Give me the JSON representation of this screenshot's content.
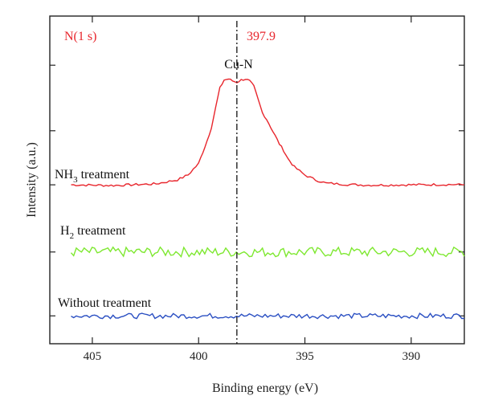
{
  "chart_data": {
    "type": "line",
    "title": "",
    "xlabel": "Binding energy (eV)",
    "ylabel": "Intensity (a.u.)",
    "xlim": [
      407.0,
      387.5
    ],
    "x_reversed": true,
    "x_ticks": [
      405,
      400,
      395,
      390
    ],
    "x_tick_labels": [
      "405",
      "400",
      "395",
      "390"
    ],
    "y_ticks_unlabeled": true,
    "ylim": [
      0,
      100
    ],
    "grid": false,
    "legend": "none",
    "annotations": {
      "peak_region": "N(1 s)",
      "peak_position": "397.9",
      "peak_assignment": "Cu-N",
      "peak_marker_x": 398.2
    },
    "colors": {
      "nh3": "#e8262d",
      "h2": "#7ee830",
      "without": "#2a4fc2",
      "region_label": "#e8262d",
      "peak_label": "#e8262d",
      "marker": "#111111"
    },
    "series": [
      {
        "name": "NH",
        "sub": "3",
        "suffix": " treatment",
        "color_key": "nh3",
        "x": [
          406.0,
          404.0,
          402.0,
          401.0,
          400.5,
          400.0,
          399.8,
          399.6,
          399.4,
          399.2,
          399.0,
          398.8,
          398.6,
          398.4,
          398.2,
          398.0,
          397.8,
          397.6,
          397.4,
          397.2,
          397.0,
          396.8,
          396.6,
          396.4,
          396.2,
          396.0,
          395.8,
          395.5,
          395.0,
          394.5,
          394.0,
          393.0,
          392.0,
          390.0,
          388.0,
          387.5
        ],
        "y": [
          48.5,
          48.3,
          48.8,
          50.0,
          51.5,
          55.0,
          58.5,
          62.0,
          66.0,
          72.0,
          78.0,
          80.5,
          80.8,
          80.2,
          79.8,
          80.5,
          80.8,
          80.2,
          78.5,
          74.5,
          70.5,
          68.5,
          66.0,
          63.5,
          61.0,
          59.0,
          56.5,
          54.0,
          51.5,
          50.0,
          49.0,
          48.6,
          48.4,
          48.5,
          48.6,
          48.5
        ]
      },
      {
        "name": "H",
        "sub": "2",
        "suffix": " treatment",
        "color_key": "h2",
        "x": [
          406.0,
          387.5
        ],
        "y": [
          28.0,
          28.0
        ],
        "noise_amplitude": 1.5
      },
      {
        "name": "Without treatment",
        "sub": "",
        "suffix": "",
        "color_key": "without",
        "x": [
          406.0,
          387.5
        ],
        "y": [
          8.5,
          8.5
        ],
        "noise_amplitude": 0.8
      }
    ]
  }
}
